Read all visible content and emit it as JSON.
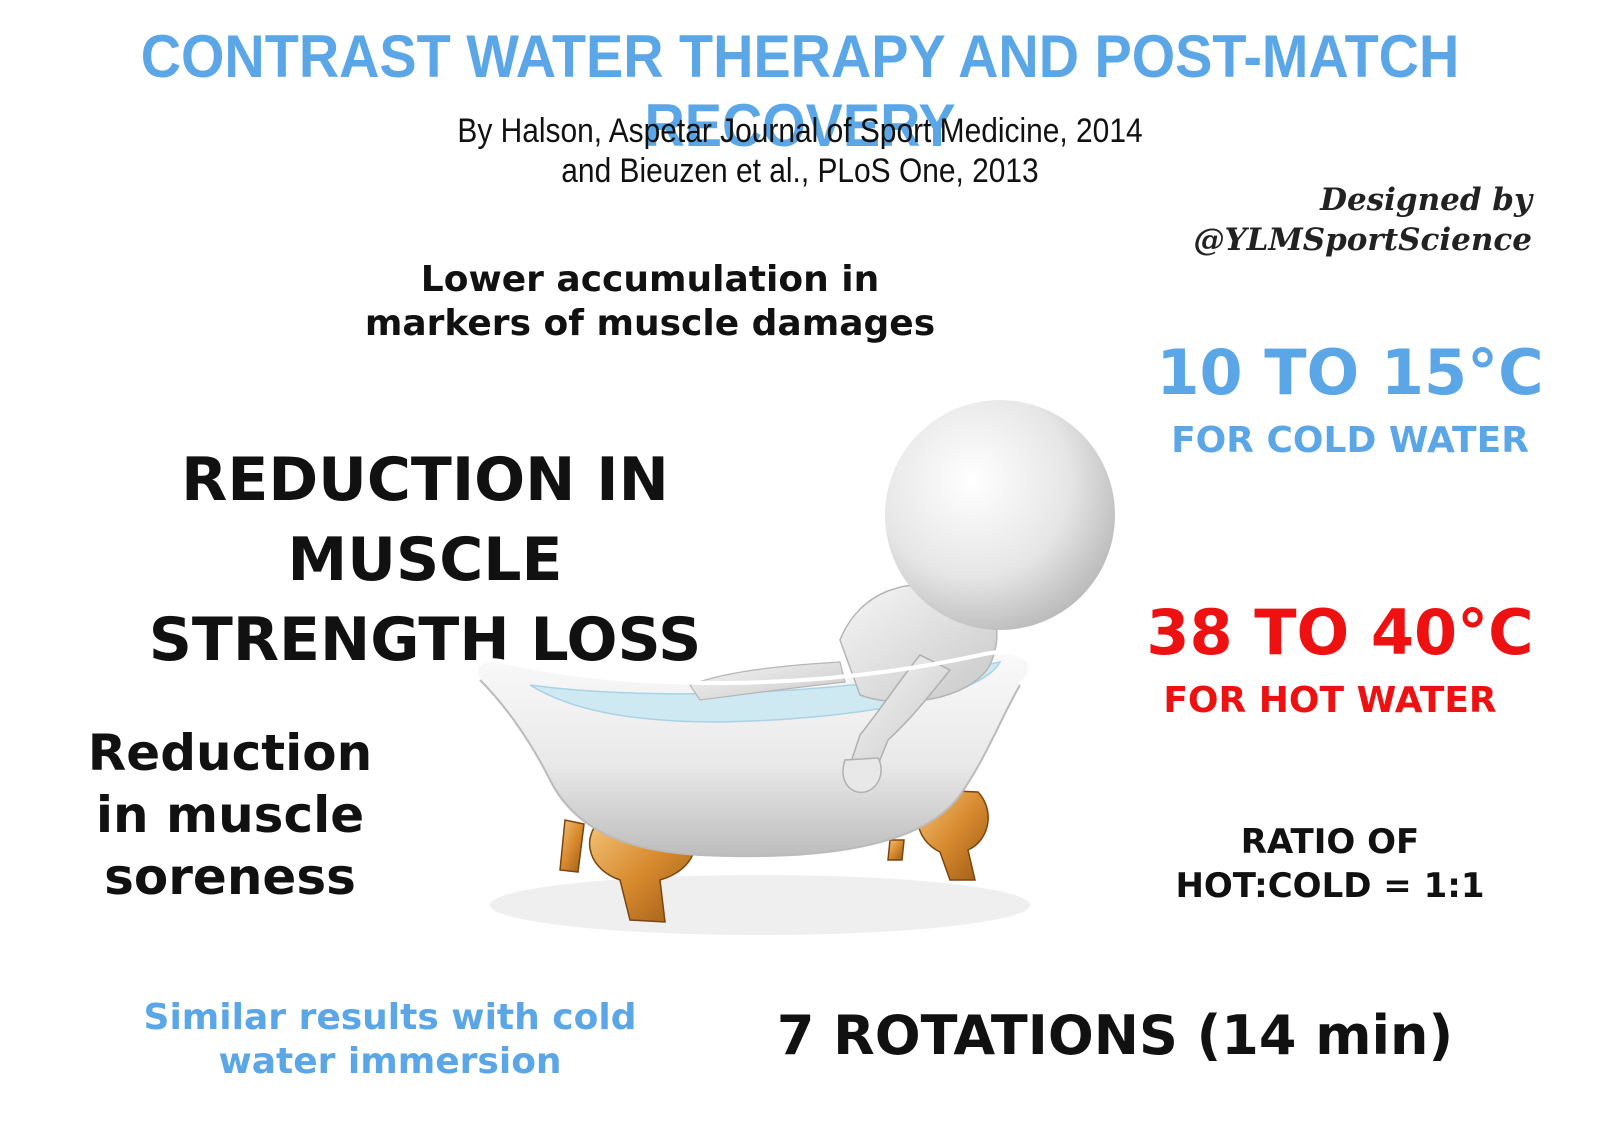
{
  "title": "CONTRAST WATER THERAPY AND POST-MATCH RECOVERY",
  "source": {
    "line1": "By Halson, Aspetar Journal of Sport Medicine, 2014",
    "line2": "and Bieuzen et al., PLoS One, 2013"
  },
  "credit": {
    "line1": "Designed by",
    "line2": "@YLMSportScience"
  },
  "benefits": {
    "damage_line1": "Lower accumulation in",
    "damage_line2": "markers of muscle damages",
    "strength_line1": "REDUCTION IN MUSCLE",
    "strength_line2": "STRENGTH LOSS",
    "soreness_line1": "Reduction",
    "soreness_line2": "in muscle",
    "soreness_line3": "soreness",
    "similar_line1": "Similar results with cold",
    "similar_line2": "water immersion"
  },
  "protocol": {
    "cold_temp": "10 TO 15°C",
    "cold_label": "FOR COLD WATER",
    "hot_temp": "38 TO 40°C",
    "hot_label": "FOR HOT WATER",
    "ratio_line1": "RATIO OF",
    "ratio_line2": "HOT:COLD = 1:1",
    "rotations": "7 ROTATIONS (14 min)"
  },
  "colors": {
    "accent_blue": "#5aa6e6",
    "hot_red": "#ee1111",
    "text": "#111111"
  }
}
